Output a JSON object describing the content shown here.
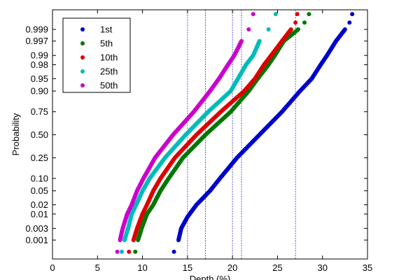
{
  "chart_data": {
    "type": "scatter",
    "title": "",
    "xlabel": "Depth (%)",
    "ylabel": "Probability",
    "xlim": [
      0,
      35
    ],
    "x_ticks": [
      0,
      5,
      10,
      15,
      20,
      25,
      30,
      35
    ],
    "y_scale": "normal-probability",
    "y_ticks": [
      0.001,
      0.003,
      0.01,
      0.02,
      0.05,
      0.1,
      0.25,
      0.5,
      0.75,
      0.9,
      0.95,
      0.98,
      0.99,
      0.997,
      0.999
    ],
    "y_tick_labels": [
      "0.001",
      "0.003",
      "0.01",
      "0.02",
      "0.05",
      "0.10",
      "0.25",
      "0.50",
      "0.75",
      "0.90",
      "0.95",
      "0.98",
      "0.99",
      "0.997",
      "0.999"
    ],
    "grid": false,
    "legend_position": "top-left",
    "vertical_reference_lines": [
      15,
      17,
      20,
      21,
      27
    ],
    "reference_line_color": "#3333cc",
    "series": [
      {
        "name": "1st",
        "color": "#0000cc",
        "points": [
          [
            13.5,
            0.0003
          ],
          [
            14,
            0.001
          ],
          [
            14.3,
            0.003
          ],
          [
            15,
            0.008
          ],
          [
            16,
            0.02
          ],
          [
            17.5,
            0.05
          ],
          [
            18.6,
            0.1
          ],
          [
            20.5,
            0.25
          ],
          [
            23,
            0.5
          ],
          [
            25.5,
            0.75
          ],
          [
            27.5,
            0.9
          ],
          [
            28.8,
            0.95
          ],
          [
            29.8,
            0.98
          ],
          [
            30.5,
            0.99
          ],
          [
            31.5,
            0.997
          ],
          [
            32.5,
            0.999
          ],
          [
            33,
            0.9995
          ],
          [
            33.3,
            0.9998
          ]
        ]
      },
      {
        "name": "5th",
        "color": "#007700",
        "points": [
          [
            9.2,
            0.0003
          ],
          [
            9.5,
            0.001
          ],
          [
            9.9,
            0.003
          ],
          [
            10.5,
            0.01
          ],
          [
            11.2,
            0.02
          ],
          [
            12,
            0.05
          ],
          [
            12.9,
            0.1
          ],
          [
            14.5,
            0.25
          ],
          [
            17,
            0.5
          ],
          [
            19.8,
            0.75
          ],
          [
            21.8,
            0.9
          ],
          [
            22.8,
            0.95
          ],
          [
            24,
            0.98
          ],
          [
            24.7,
            0.99
          ],
          [
            25.7,
            0.997
          ],
          [
            27.3,
            0.999
          ],
          [
            28,
            0.9995
          ],
          [
            28.5,
            0.9998
          ]
        ]
      },
      {
        "name": "10th",
        "color": "#dd0000",
        "points": [
          [
            8.5,
            0.0003
          ],
          [
            9.0,
            0.001
          ],
          [
            9.4,
            0.003
          ],
          [
            10,
            0.01
          ],
          [
            10.5,
            0.02
          ],
          [
            11.2,
            0.05
          ],
          [
            12,
            0.1
          ],
          [
            13.6,
            0.25
          ],
          [
            16,
            0.5
          ],
          [
            18.7,
            0.75
          ],
          [
            21.3,
            0.9
          ],
          [
            22.5,
            0.95
          ],
          [
            23.5,
            0.98
          ],
          [
            24.3,
            0.99
          ],
          [
            25.5,
            0.997
          ],
          [
            26.5,
            0.999
          ],
          [
            27,
            0.9995
          ],
          [
            27.2,
            0.9998
          ]
        ]
      },
      {
        "name": "25th",
        "color": "#00bbbb",
        "points": [
          [
            7.7,
            0.0003
          ],
          [
            8.0,
            0.001
          ],
          [
            8.4,
            0.003
          ],
          [
            8.8,
            0.01
          ],
          [
            9.3,
            0.02
          ],
          [
            10,
            0.05
          ],
          [
            10.8,
            0.1
          ],
          [
            12.5,
            0.25
          ],
          [
            14.8,
            0.5
          ],
          [
            17.3,
            0.75
          ],
          [
            19.8,
            0.9
          ],
          [
            20.6,
            0.95
          ],
          [
            21.5,
            0.98
          ],
          [
            22.3,
            0.99
          ],
          [
            23,
            0.997
          ],
          [
            24,
            0.999
          ],
          [
            24.8,
            0.9998
          ]
        ]
      },
      {
        "name": "50th",
        "color": "#cc00cc",
        "points": [
          [
            7.2,
            0.0003
          ],
          [
            7.5,
            0.001
          ],
          [
            7.8,
            0.003
          ],
          [
            8.3,
            0.01
          ],
          [
            8.8,
            0.02
          ],
          [
            9.4,
            0.05
          ],
          [
            10.1,
            0.1
          ],
          [
            11.4,
            0.25
          ],
          [
            13.4,
            0.5
          ],
          [
            15.7,
            0.75
          ],
          [
            17.5,
            0.9
          ],
          [
            18.5,
            0.95
          ],
          [
            19.5,
            0.98
          ],
          [
            20.2,
            0.99
          ],
          [
            21,
            0.997
          ],
          [
            21.8,
            0.999
          ],
          [
            22.3,
            0.9998
          ]
        ]
      }
    ]
  }
}
